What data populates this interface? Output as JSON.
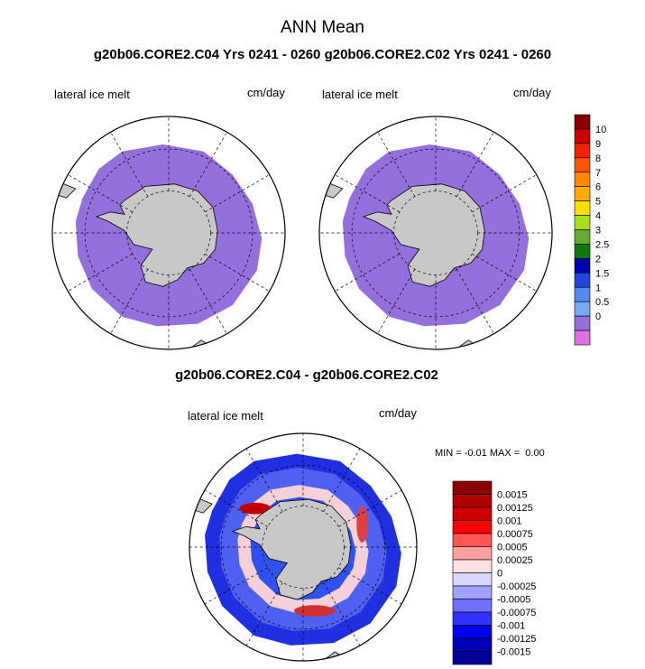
{
  "title": "ANN Mean",
  "subtitle": "g20b06.CORE2.C04  Yrs 0241 - 0260 g20b06.CORE2.C02  Yrs 0241 - 0260",
  "diff_title": "g20b06.CORE2.C04 - g20b06.CORE2.C02",
  "colors": {
    "ice_melt_fill": "#9370DB",
    "land": "#C8C8C8"
  },
  "chart_data": [
    {
      "type": "map",
      "panel": "C04",
      "variable_label": "lateral ice melt",
      "units_label": "cm/day",
      "projection": "south polar stereographic"
    },
    {
      "type": "map",
      "panel": "C02",
      "variable_label": "lateral ice melt",
      "units_label": "cm/day",
      "projection": "south polar stereographic"
    },
    {
      "type": "colorbar",
      "labels": [
        "10",
        "9",
        "8",
        "7",
        "6",
        "5",
        "4",
        "3",
        "2.5",
        "2",
        "1.5",
        "1",
        "0.5",
        "0"
      ],
      "colors": [
        "#8B0000",
        "#CC0000",
        "#EE2200",
        "#FF5500",
        "#FF8800",
        "#FFAA00",
        "#FFDD00",
        "#AADD22",
        "#66AA33",
        "#117711",
        "#0000AA",
        "#2244DD",
        "#5588EE",
        "#77AAEE",
        "#9370DB",
        "#E070E0"
      ]
    },
    {
      "type": "map",
      "panel": "difference",
      "variable_label": "lateral ice melt",
      "units_label": "cm/day",
      "min_label": "MIN = ",
      "min_value": "-0.01",
      "max_label": "MAX = ",
      "max_value": "0.00"
    },
    {
      "type": "colorbar",
      "labels": [
        "0.0015",
        "0.00125",
        "0.001",
        "0.00075",
        "0.0005",
        "0.00025",
        "0",
        "-0.00025",
        "-0.0005",
        "-0.00075",
        "-0.001",
        "-0.00125",
        "-0.0015"
      ],
      "colors": [
        "#8B0000",
        "#B00000",
        "#D00000",
        "#FF0000",
        "#FF5555",
        "#FFA0A0",
        "#FFE0E0",
        "#D8D8FF",
        "#A0A0FF",
        "#7070FF",
        "#3030FF",
        "#0000EE",
        "#0000BB",
        "#000099"
      ]
    }
  ]
}
